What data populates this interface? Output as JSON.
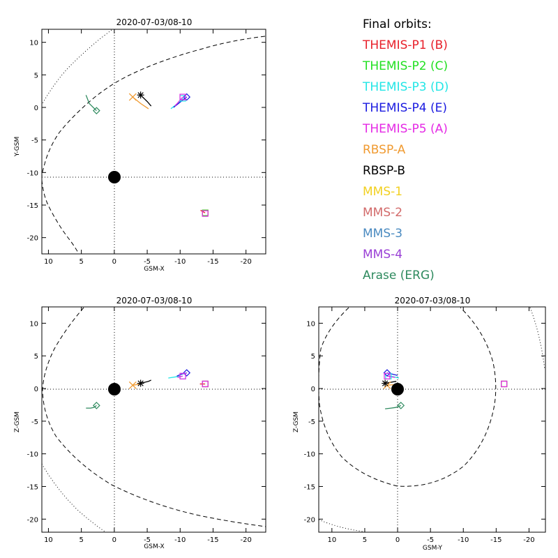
{
  "chart_data": [
    {
      "type": "line",
      "panel": "XY",
      "title": "2020-07-03/08-10",
      "xlabel": "GSM-X",
      "ylabel": "Y-GSM",
      "xlim": [
        11,
        -23
      ],
      "ylim": [
        12,
        -22.5
      ],
      "xticks": [
        10,
        5,
        0,
        -5,
        -10,
        -15,
        -20
      ],
      "xtick_labels": [
        "10",
        "5",
        "0",
        "-5",
        "-10",
        "-15",
        "-20"
      ],
      "yticks": [
        10,
        5,
        0,
        -5,
        -10,
        -15,
        -20
      ],
      "ytick_labels": [
        "10",
        "5",
        "0",
        "-5",
        "-10",
        "-15",
        "-20"
      ],
      "markers": [
        {
          "sat": "P1",
          "x": -13.8,
          "y": -16.2,
          "m": "square"
        },
        {
          "sat": "P2",
          "x": -13.8,
          "y": -16.2,
          "m": "square"
        },
        {
          "sat": "P3",
          "x": -10.4,
          "y": 1.4,
          "m": "square"
        },
        {
          "sat": "P4",
          "x": -11.0,
          "y": 1.6,
          "m": "diamond"
        },
        {
          "sat": "P5",
          "x": -10.4,
          "y": 1.6,
          "m": "square"
        },
        {
          "sat": "P5",
          "x": -13.8,
          "y": -16.3,
          "m": "square"
        },
        {
          "sat": "RBSPA",
          "x": -2.8,
          "y": 1.6,
          "m": "x"
        },
        {
          "sat": "RBSPB",
          "x": -4.0,
          "y": 1.9,
          "m": "asterisk"
        },
        {
          "sat": "ARASE",
          "x": 2.7,
          "y": -0.5,
          "m": "diamond"
        }
      ],
      "tracks": [
        {
          "sat": "P3",
          "pts": [
            [
              -8.6,
              -0.2
            ],
            [
              -9.6,
              0.6
            ],
            [
              -10.5,
              1.4
            ]
          ]
        },
        {
          "sat": "P4",
          "pts": [
            [
              -9.0,
              0.0
            ],
            [
              -10.0,
              0.8
            ],
            [
              -11.0,
              1.6
            ]
          ]
        },
        {
          "sat": "P5",
          "pts": [
            [
              -9.2,
              0.2
            ],
            [
              -9.8,
              0.9
            ],
            [
              -10.4,
              1.6
            ]
          ]
        },
        {
          "sat": "P1",
          "pts": [
            [
              -13.1,
              -15.8
            ],
            [
              -13.8,
              -16.2
            ]
          ]
        },
        {
          "sat": "RBSPA",
          "pts": [
            [
              -2.8,
              1.6
            ],
            [
              -4.0,
              0.6
            ],
            [
              -5.2,
              -0.2
            ]
          ]
        },
        {
          "sat": "RBSPB",
          "pts": [
            [
              -4.0,
              1.9
            ],
            [
              -5.0,
              0.9
            ],
            [
              -5.6,
              0.2
            ]
          ]
        },
        {
          "sat": "ARASE",
          "pts": [
            [
              4.3,
              1.9
            ],
            [
              3.8,
              0.6
            ],
            [
              3.3,
              0.1
            ],
            [
              2.7,
              -0.5
            ]
          ]
        }
      ]
    },
    {
      "type": "line",
      "panel": "XZ",
      "title": "2020-07-03/08-10",
      "xlabel": "GSM-X",
      "ylabel": "Z-GSM",
      "xlim": [
        11,
        -23
      ],
      "ylim": [
        12.5,
        -22
      ],
      "xticks": [
        10,
        5,
        0,
        -5,
        -10,
        -15,
        -20
      ],
      "xtick_labels": [
        "10",
        "5",
        "0",
        "-5",
        "-10",
        "-15",
        "-20"
      ],
      "yticks": [
        10,
        5,
        0,
        -5,
        -10,
        -15,
        -20
      ],
      "ytick_labels": [
        "10",
        "5",
        "0",
        "-5",
        "-10",
        "-15",
        "-20"
      ],
      "markers": [
        {
          "sat": "P1",
          "x": -13.8,
          "y": 0.7,
          "m": "square"
        },
        {
          "sat": "P2",
          "x": -13.8,
          "y": 0.7,
          "m": "square"
        },
        {
          "sat": "P3",
          "x": -10.4,
          "y": 1.9,
          "m": "square"
        },
        {
          "sat": "P4",
          "x": -11.0,
          "y": 2.4,
          "m": "diamond"
        },
        {
          "sat": "P5",
          "x": -10.4,
          "y": 1.9,
          "m": "square"
        },
        {
          "sat": "P5",
          "x": -13.8,
          "y": 0.7,
          "m": "square"
        },
        {
          "sat": "RBSPA",
          "x": -2.8,
          "y": 0.5,
          "m": "x"
        },
        {
          "sat": "RBSPB",
          "x": -4.0,
          "y": 0.8,
          "m": "asterisk"
        },
        {
          "sat": "ARASE",
          "x": 2.7,
          "y": -2.6,
          "m": "diamond"
        }
      ],
      "tracks": [
        {
          "sat": "P3",
          "pts": [
            [
              -8.2,
              1.6
            ],
            [
              -9.4,
              1.8
            ],
            [
              -10.4,
              1.9
            ]
          ]
        },
        {
          "sat": "P4",
          "pts": [
            [
              -9.5,
              1.9
            ],
            [
              -10.2,
              2.2
            ],
            [
              -11.0,
              2.4
            ]
          ]
        },
        {
          "sat": "P5",
          "pts": [
            [
              -9.6,
              1.7
            ],
            [
              -10.4,
              1.9
            ]
          ]
        },
        {
          "sat": "P1",
          "pts": [
            [
              -13.0,
              0.7
            ],
            [
              -13.8,
              0.7
            ]
          ]
        },
        {
          "sat": "RBSPA",
          "pts": [
            [
              -2.8,
              0.5
            ],
            [
              -4.0,
              0.7
            ]
          ]
        },
        {
          "sat": "RBSPB",
          "pts": [
            [
              -4.0,
              0.8
            ],
            [
              -5.2,
              1.1
            ],
            [
              -5.6,
              1.3
            ]
          ]
        },
        {
          "sat": "ARASE",
          "pts": [
            [
              4.3,
              -3.0
            ],
            [
              3.6,
              -3.0
            ],
            [
              3.1,
              -2.9
            ],
            [
              2.7,
              -2.6
            ]
          ]
        }
      ]
    },
    {
      "type": "line",
      "panel": "YZ",
      "title": "2020-07-03/08-10",
      "xlabel": "GSM-Y",
      "ylabel": "Z-GSM",
      "xlim": [
        12,
        -22.5
      ],
      "ylim": [
        12.5,
        -22
      ],
      "xticks": [
        10,
        5,
        0,
        -5,
        -10,
        -15,
        -20
      ],
      "xtick_labels": [
        "10",
        "5",
        "0",
        "-5",
        "-10",
        "-15",
        "-20"
      ],
      "yticks": [
        10,
        5,
        0,
        -5,
        -10,
        -15,
        -20
      ],
      "ytick_labels": [
        "10",
        "5",
        "0",
        "-5",
        "-10",
        "-15",
        "-20"
      ],
      "markers": [
        {
          "sat": "P1",
          "x": -16.2,
          "y": 0.7,
          "m": "square"
        },
        {
          "sat": "P2",
          "x": -16.2,
          "y": 0.7,
          "m": "square"
        },
        {
          "sat": "P3",
          "x": 1.4,
          "y": 1.9,
          "m": "square"
        },
        {
          "sat": "P4",
          "x": 1.6,
          "y": 2.4,
          "m": "diamond"
        },
        {
          "sat": "P5",
          "x": 1.6,
          "y": 1.9,
          "m": "square"
        },
        {
          "sat": "P5",
          "x": -16.2,
          "y": 0.7,
          "m": "square"
        },
        {
          "sat": "RBSPA",
          "x": 1.6,
          "y": 0.5,
          "m": "x"
        },
        {
          "sat": "RBSPB",
          "x": 1.9,
          "y": 0.8,
          "m": "asterisk"
        },
        {
          "sat": "ARASE",
          "x": -0.5,
          "y": -2.6,
          "m": "diamond"
        }
      ],
      "tracks": [
        {
          "sat": "P3",
          "pts": [
            [
              -0.2,
              1.6
            ],
            [
              0.6,
              1.8
            ],
            [
              1.4,
              1.9
            ]
          ]
        },
        {
          "sat": "P4",
          "pts": [
            [
              0.0,
              2.0
            ],
            [
              0.8,
              2.2
            ],
            [
              1.6,
              2.4
            ]
          ]
        },
        {
          "sat": "P5",
          "pts": [
            [
              0.4,
              1.7
            ],
            [
              1.6,
              1.9
            ]
          ]
        },
        {
          "sat": "RBSPA",
          "pts": [
            [
              1.6,
              0.5
            ],
            [
              0.4,
              0.6
            ],
            [
              -0.4,
              0.7
            ]
          ]
        },
        {
          "sat": "RBSPB",
          "pts": [
            [
              1.9,
              0.8
            ],
            [
              0.8,
              1.0
            ],
            [
              0.2,
              1.1
            ]
          ]
        },
        {
          "sat": "ARASE",
          "pts": [
            [
              1.9,
              -3.1
            ],
            [
              1.0,
              -3.0
            ],
            [
              0.3,
              -2.9
            ],
            [
              -0.5,
              -2.6
            ]
          ]
        }
      ]
    }
  ],
  "legend": {
    "title": "Final orbits:",
    "items": [
      {
        "key": "P1",
        "label": "THEMIS-P1 (B)",
        "color": "#e8202a"
      },
      {
        "key": "P2",
        "label": "THEMIS-P2 (C)",
        "color": "#22e022"
      },
      {
        "key": "P3",
        "label": "THEMIS-P3 (D)",
        "color": "#22e6e6"
      },
      {
        "key": "P4",
        "label": "THEMIS-P4 (E)",
        "color": "#1a1ae0"
      },
      {
        "key": "P5",
        "label": "THEMIS-P5 (A)",
        "color": "#e52ae5"
      },
      {
        "key": "RBSPA",
        "label": "RBSP-A",
        "color": "#f09a30"
      },
      {
        "key": "RBSPB",
        "label": "RBSP-B",
        "color": "#000000"
      },
      {
        "key": "MMS1",
        "label": "MMS-1",
        "color": "#f2d020"
      },
      {
        "key": "MMS2",
        "label": "MMS-2",
        "color": "#d26a6a"
      },
      {
        "key": "MMS3",
        "label": "MMS-3",
        "color": "#4a8ac0"
      },
      {
        "key": "MMS4",
        "label": "MMS-4",
        "color": "#9a40d6"
      },
      {
        "key": "ARASE",
        "label": "Arase (ERG)",
        "color": "#2e8a5e"
      }
    ]
  }
}
